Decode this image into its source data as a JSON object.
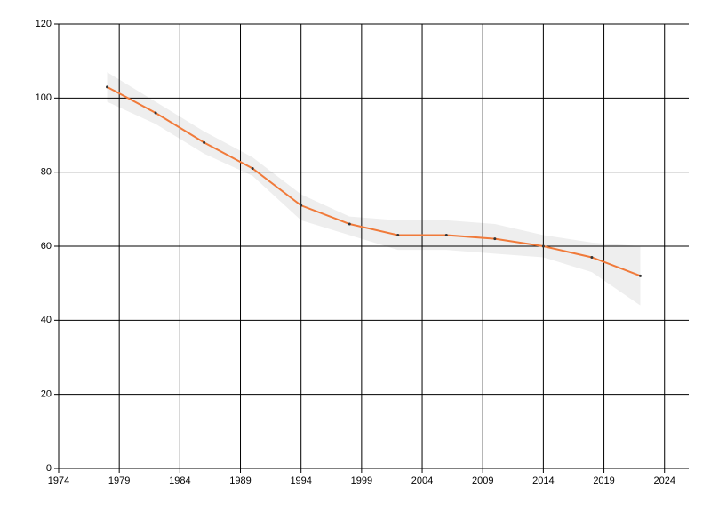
{
  "chart_data": {
    "type": "line",
    "x": [
      1978,
      1982,
      1986,
      1990,
      1994,
      1998,
      2002,
      2006,
      2010,
      2014,
      2018,
      2022
    ],
    "series": [
      {
        "color": "#f07a3a",
        "values": [
          103,
          96,
          88,
          81,
          71,
          66,
          63,
          63,
          62,
          60,
          57,
          52
        ]
      }
    ],
    "band": {
      "color": "#eeeeee",
      "lower": [
        99,
        93,
        85,
        79,
        67,
        63,
        59,
        59,
        58,
        57,
        53,
        44
      ],
      "upper": [
        107,
        99,
        91,
        84,
        74,
        68,
        67,
        67,
        66,
        63,
        61,
        60
      ]
    },
    "xlim": [
      1974,
      2026
    ],
    "xticks": [
      1974,
      1979,
      1984,
      1989,
      1994,
      1999,
      2004,
      2009,
      2014,
      2019,
      2024
    ],
    "ylim": [
      0,
      120
    ],
    "yticks": [
      0,
      20,
      40,
      60,
      80,
      100,
      120
    ],
    "grid": true
  }
}
